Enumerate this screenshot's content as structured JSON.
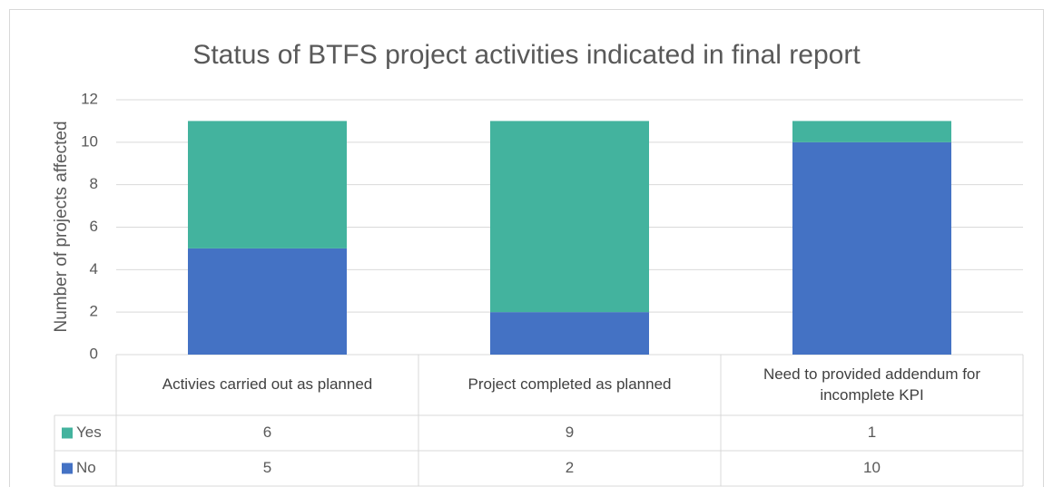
{
  "chart_data": {
    "type": "bar",
    "stacked": true,
    "title": "Status of BTFS project activities indicated in final report",
    "y_label": "Number of projects affected",
    "categories": [
      "Activies carried out as planned",
      "Project completed as planned",
      "Need to provided addendum for incomplete KPI"
    ],
    "series": [
      {
        "name": "Yes",
        "color": "#43b39e",
        "values": [
          6,
          9,
          1
        ]
      },
      {
        "name": "No",
        "color": "#4472c4",
        "values": [
          5,
          2,
          10
        ]
      }
    ],
    "ylim": [
      0,
      12
    ],
    "yticks": [
      0,
      2,
      4,
      6,
      8,
      10,
      12
    ],
    "grid": true,
    "data_table": true
  }
}
